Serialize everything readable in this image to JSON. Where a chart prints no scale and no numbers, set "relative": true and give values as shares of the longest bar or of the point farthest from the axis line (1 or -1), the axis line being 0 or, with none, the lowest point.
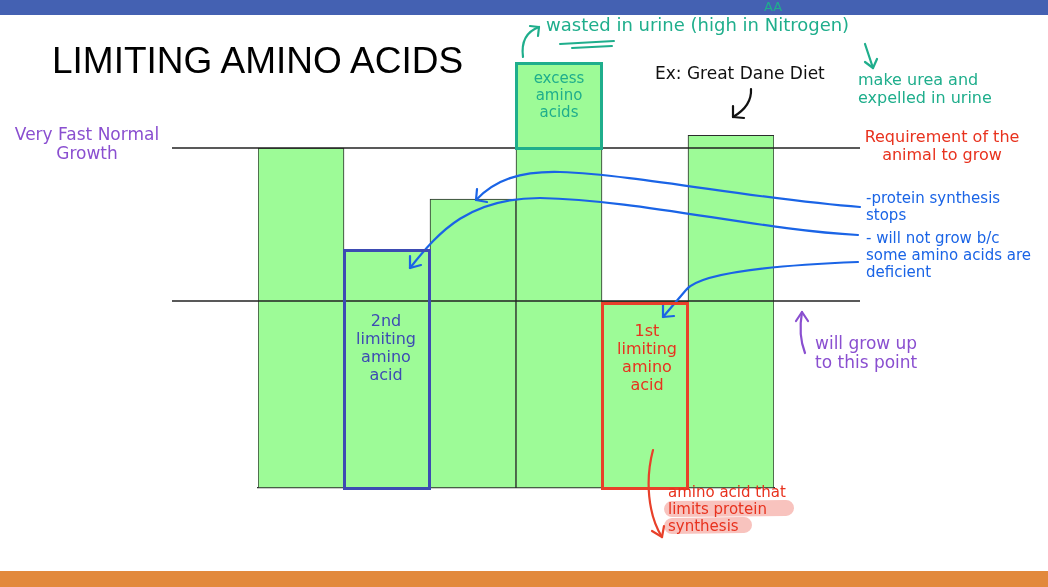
{
  "chart_data": {
    "type": "bar",
    "title": "LIMITING AMINO ACIDS",
    "categories": [
      null,
      null,
      null,
      null,
      null,
      null
    ],
    "values": [
      0.8,
      0.56,
      0.68,
      1,
      0.44,
      0.83
    ],
    "color": "#9dfb97",
    "relative": true,
    "ref_lines": [
      {
        "axis": "y",
        "value": 0.8,
        "color": "#222222"
      },
      {
        "axis": "y",
        "value": 0.44,
        "color": "#222222"
      }
    ],
    "annotations": [
      "AA",
      "wasted in urine (high in Nitrogen)",
      "make urea and expelled in urine",
      "excess amino acids",
      "Ex: Great Dane Diet",
      "Very Fast Normal Growth",
      "Requirement of the animal to grow",
      "-protein synthesis stops",
      "- will not grow b/c some amino acids are deficient",
      "2nd limiting amino acid",
      "1st limiting amino acid",
      "will grow up to this point",
      "amino acid that limits protein synthesis"
    ]
  }
}
